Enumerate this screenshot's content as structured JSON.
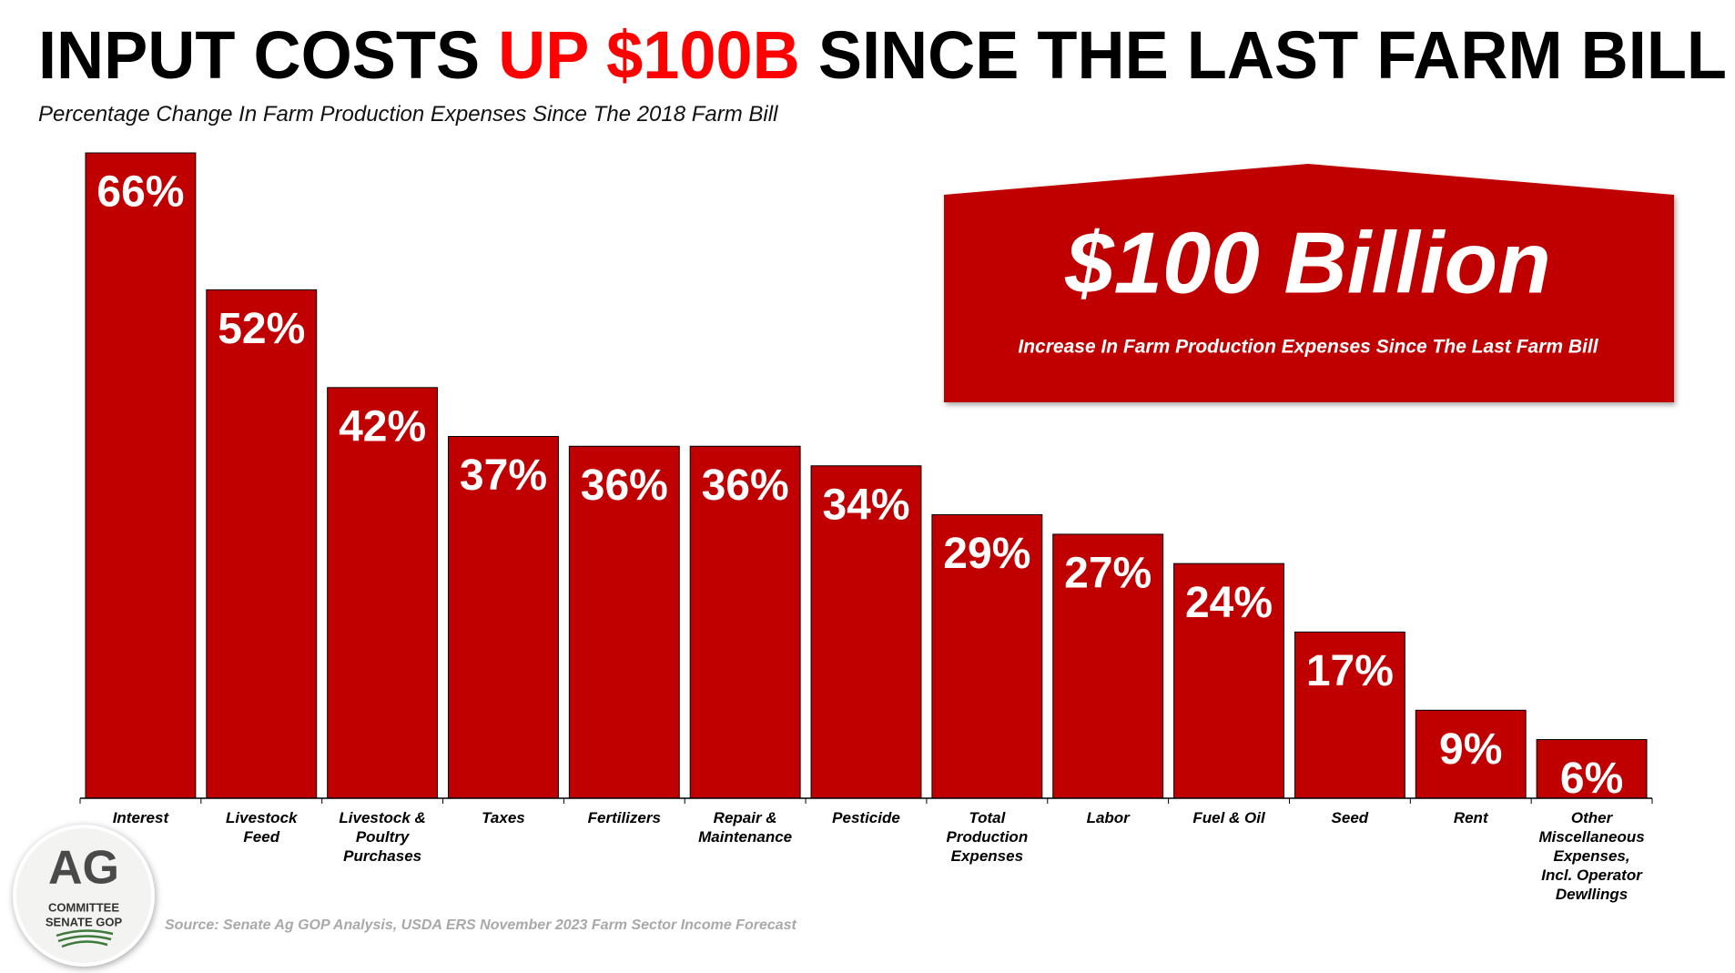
{
  "chart_data": {
    "type": "bar",
    "title": {
      "before": "INPUT COSTS",
      "highlight": "UP $100B",
      "after": "SINCE THE LAST FARM BILL"
    },
    "subtitle": "Percentage Change In Farm Production Expenses Since The 2018 Farm Bill",
    "categories": [
      "Interest",
      "Livestock Feed",
      "Livestock & Poultry Purchases",
      "Taxes",
      "Fertilizers",
      "Repair & Maintenance",
      "Pesticide",
      "Total Production Expenses",
      "Labor",
      "Fuel & Oil",
      "Seed",
      "Rent",
      "Other Miscellaneous Expenses, Incl. Operator Dewllings"
    ],
    "values": [
      66,
      52,
      42,
      37,
      36,
      36,
      34,
      29,
      27,
      24,
      17,
      9,
      6
    ],
    "value_labels": [
      "66%",
      "52%",
      "42%",
      "37%",
      "36%",
      "36%",
      "34%",
      "29%",
      "27%",
      "24%",
      "17%",
      "9%",
      "6%"
    ],
    "color": "#c00000",
    "callout": {
      "headline": "$100 Billion",
      "text": "Increase In Farm Production Expenses Since The Last Farm Bill"
    },
    "source": "Source: Senate Ag GOP Analysis, USDA ERS November 2023 Farm Sector Income Forecast"
  },
  "logo": {
    "main": "AG",
    "line1": "COMMITTEE",
    "line2": "SENATE GOP"
  }
}
